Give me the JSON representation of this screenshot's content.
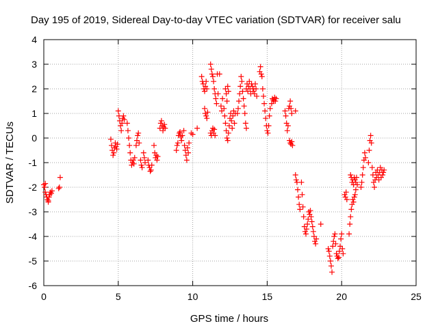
{
  "chart_data": {
    "type": "scatter",
    "title": "Day 195 of 2019, Sidereal Day-to-day VTEC variation (SDTVAR) for receiver salu",
    "xlabel": "GPS time / hours",
    "ylabel": "SDTVAR / TECUs",
    "xlim": [
      0,
      25
    ],
    "ylim": [
      -6,
      4
    ],
    "xticks": [
      0,
      5,
      10,
      15,
      20,
      25
    ],
    "yticks": [
      -6,
      -5,
      -4,
      -3,
      -2,
      -1,
      0,
      1,
      2,
      3,
      4
    ],
    "grid": true,
    "marker": "+",
    "color": "#ff0000",
    "series": [
      {
        "name": "SDTVAR",
        "points": [
          [
            0.05,
            -2.0
          ],
          [
            0.1,
            -2.2
          ],
          [
            0.15,
            -2.3
          ],
          [
            0.2,
            -2.4
          ],
          [
            0.25,
            -2.5
          ],
          [
            0.3,
            -2.55
          ],
          [
            0.35,
            -2.4
          ],
          [
            0.4,
            -2.3
          ],
          [
            0.45,
            -2.2
          ],
          [
            0.5,
            -2.25
          ],
          [
            0.55,
            -2.15
          ],
          [
            0.0,
            -1.9
          ],
          [
            0.1,
            -1.85
          ],
          [
            0.3,
            -2.6
          ],
          [
            1.0,
            -2.05
          ],
          [
            1.05,
            -2.0
          ],
          [
            1.1,
            -1.6
          ],
          [
            4.5,
            -0.05
          ],
          [
            4.55,
            -0.3
          ],
          [
            4.6,
            -0.5
          ],
          [
            4.65,
            -0.7
          ],
          [
            4.7,
            -0.6
          ],
          [
            4.75,
            -0.4
          ],
          [
            4.8,
            -0.2
          ],
          [
            4.85,
            -0.35
          ],
          [
            4.9,
            -0.45
          ],
          [
            4.95,
            -0.25
          ],
          [
            5.0,
            1.1
          ],
          [
            5.05,
            0.9
          ],
          [
            5.1,
            0.7
          ],
          [
            5.15,
            0.5
          ],
          [
            5.2,
            0.3
          ],
          [
            5.25,
            0.6
          ],
          [
            5.3,
            0.8
          ],
          [
            5.35,
            0.9
          ],
          [
            5.4,
            0.75
          ],
          [
            5.6,
            0.6
          ],
          [
            5.65,
            0.3
          ],
          [
            5.7,
            0.0
          ],
          [
            5.75,
            -0.3
          ],
          [
            5.8,
            -0.6
          ],
          [
            5.85,
            -0.9
          ],
          [
            5.9,
            -1.1
          ],
          [
            5.95,
            -1.0
          ],
          [
            6.0,
            -0.9
          ],
          [
            6.05,
            -1.05
          ],
          [
            6.1,
            -0.8
          ],
          [
            6.2,
            -0.3
          ],
          [
            6.25,
            -0.1
          ],
          [
            6.3,
            0.1
          ],
          [
            6.35,
            0.2
          ],
          [
            6.4,
            -0.2
          ],
          [
            6.5,
            -0.9
          ],
          [
            6.55,
            -1.1
          ],
          [
            6.6,
            -1.2
          ],
          [
            6.7,
            -0.6
          ],
          [
            6.75,
            -0.8
          ],
          [
            6.8,
            -1.0
          ],
          [
            7.0,
            -0.9
          ],
          [
            7.05,
            -1.1
          ],
          [
            7.1,
            -1.2
          ],
          [
            7.15,
            -1.35
          ],
          [
            7.2,
            -1.3
          ],
          [
            7.25,
            -1.1
          ],
          [
            7.4,
            -0.3
          ],
          [
            7.45,
            -0.6
          ],
          [
            7.5,
            -0.8
          ],
          [
            7.55,
            -0.7
          ],
          [
            7.6,
            -0.9
          ],
          [
            7.65,
            -0.75
          ],
          [
            7.8,
            0.4
          ],
          [
            7.85,
            0.6
          ],
          [
            7.9,
            0.7
          ],
          [
            7.95,
            0.5
          ],
          [
            8.0,
            0.3
          ],
          [
            8.05,
            0.45
          ],
          [
            8.1,
            0.55
          ],
          [
            8.15,
            0.4
          ],
          [
            8.9,
            -0.5
          ],
          [
            8.95,
            -0.3
          ],
          [
            9.0,
            -0.2
          ],
          [
            9.05,
            0.1
          ],
          [
            9.1,
            0.2
          ],
          [
            9.15,
            0.25
          ],
          [
            9.2,
            0.05
          ],
          [
            9.25,
            -0.1
          ],
          [
            9.3,
            0.1
          ],
          [
            9.4,
            0.3
          ],
          [
            9.45,
            -0.3
          ],
          [
            9.5,
            -0.5
          ],
          [
            9.55,
            -0.7
          ],
          [
            9.6,
            -0.9
          ],
          [
            9.65,
            -0.4
          ],
          [
            9.7,
            -0.6
          ],
          [
            9.75,
            -0.2
          ],
          [
            9.9,
            0.2
          ],
          [
            10.0,
            0.15
          ],
          [
            10.3,
            0.4
          ],
          [
            10.6,
            2.5
          ],
          [
            10.65,
            2.3
          ],
          [
            10.7,
            2.2
          ],
          [
            10.75,
            2.0
          ],
          [
            10.8,
            1.9
          ],
          [
            10.85,
            2.1
          ],
          [
            10.9,
            2.3
          ],
          [
            10.95,
            2.0
          ],
          [
            10.8,
            1.2
          ],
          [
            10.85,
            1.0
          ],
          [
            10.9,
            0.9
          ],
          [
            10.95,
            0.8
          ],
          [
            11.0,
            1.05
          ],
          [
            11.2,
            3.0
          ],
          [
            11.25,
            2.8
          ],
          [
            11.3,
            2.6
          ],
          [
            11.35,
            2.5
          ],
          [
            11.4,
            2.3
          ],
          [
            11.45,
            2.0
          ],
          [
            11.5,
            1.8
          ],
          [
            11.55,
            1.6
          ],
          [
            11.6,
            1.4
          ],
          [
            11.65,
            2.6
          ],
          [
            11.7,
            1.8
          ],
          [
            11.2,
            0.2
          ],
          [
            11.25,
            0.1
          ],
          [
            11.3,
            0.3
          ],
          [
            11.35,
            0.4
          ],
          [
            11.4,
            0.2
          ],
          [
            11.45,
            0.35
          ],
          [
            11.5,
            0.1
          ],
          [
            11.8,
            2.6
          ],
          [
            11.9,
            1.3
          ],
          [
            11.95,
            1.1
          ],
          [
            12.0,
            1.6
          ],
          [
            12.1,
            1.2
          ],
          [
            12.15,
            0.9
          ],
          [
            12.2,
            0.6
          ],
          [
            12.25,
            0.3
          ],
          [
            12.3,
            0.0
          ],
          [
            12.35,
            -0.1
          ],
          [
            12.4,
            0.2
          ],
          [
            12.45,
            0.5
          ],
          [
            12.5,
            0.8
          ],
          [
            12.55,
            1.0
          ],
          [
            12.6,
            0.7
          ],
          [
            12.65,
            0.4
          ],
          [
            12.7,
            0.9
          ],
          [
            12.75,
            1.1
          ],
          [
            12.8,
            0.6
          ],
          [
            12.85,
            1.0
          ],
          [
            12.2,
            2.0
          ],
          [
            12.25,
            1.8
          ],
          [
            12.3,
            1.5
          ],
          [
            12.35,
            2.1
          ],
          [
            12.4,
            1.9
          ],
          [
            13.0,
            1.0
          ],
          [
            13.05,
            1.2
          ],
          [
            13.1,
            1.5
          ],
          [
            13.15,
            1.8
          ],
          [
            13.2,
            2.1
          ],
          [
            13.25,
            2.5
          ],
          [
            13.3,
            2.3
          ],
          [
            13.35,
            1.9
          ],
          [
            13.4,
            1.6
          ],
          [
            13.45,
            1.3
          ],
          [
            13.5,
            1.0
          ],
          [
            13.55,
            0.6
          ],
          [
            13.6,
            0.4
          ],
          [
            13.6,
            2.0
          ],
          [
            13.65,
            2.2
          ],
          [
            13.7,
            1.9
          ],
          [
            13.75,
            2.1
          ],
          [
            13.8,
            2.3
          ],
          [
            13.85,
            2.0
          ],
          [
            13.9,
            1.8
          ],
          [
            13.95,
            2.2
          ],
          [
            14.0,
            2.1
          ],
          [
            14.05,
            1.9
          ],
          [
            14.1,
            2.0
          ],
          [
            14.15,
            1.8
          ],
          [
            14.2,
            2.2
          ],
          [
            14.25,
            2.0
          ],
          [
            14.3,
            1.7
          ],
          [
            14.5,
            2.7
          ],
          [
            14.55,
            2.9
          ],
          [
            14.6,
            2.6
          ],
          [
            14.65,
            2.5
          ],
          [
            14.7,
            2.0
          ],
          [
            14.75,
            1.7
          ],
          [
            14.8,
            1.4
          ],
          [
            14.85,
            1.1
          ],
          [
            14.9,
            0.8
          ],
          [
            14.95,
            0.5
          ],
          [
            15.0,
            0.3
          ],
          [
            15.05,
            0.2
          ],
          [
            15.1,
            0.5
          ],
          [
            15.15,
            0.9
          ],
          [
            15.2,
            1.2
          ],
          [
            15.3,
            1.4
          ],
          [
            15.35,
            1.6
          ],
          [
            15.4,
            1.55
          ],
          [
            15.45,
            1.5
          ],
          [
            15.5,
            1.65
          ],
          [
            15.55,
            1.5
          ],
          [
            15.6,
            1.6
          ],
          [
            16.2,
            1.1
          ],
          [
            16.25,
            0.9
          ],
          [
            16.3,
            0.6
          ],
          [
            16.35,
            0.3
          ],
          [
            16.4,
            0.5
          ],
          [
            16.45,
            1.2
          ],
          [
            16.5,
            1.3
          ],
          [
            16.55,
            1.5
          ],
          [
            16.6,
            1.2
          ],
          [
            16.65,
            1.0
          ],
          [
            16.5,
            -0.1
          ],
          [
            16.55,
            -0.2
          ],
          [
            16.6,
            -0.25
          ],
          [
            16.65,
            -0.15
          ],
          [
            16.7,
            -0.3
          ],
          [
            16.9,
            1.1
          ],
          [
            16.9,
            -1.5
          ],
          [
            16.95,
            -1.7
          ],
          [
            17.0,
            -1.8
          ],
          [
            17.05,
            -2.1
          ],
          [
            17.1,
            -2.4
          ],
          [
            17.15,
            -2.7
          ],
          [
            17.2,
            -2.9
          ],
          [
            17.3,
            -1.8
          ],
          [
            17.35,
            -2.3
          ],
          [
            17.4,
            -2.8
          ],
          [
            17.45,
            -3.2
          ],
          [
            17.5,
            -3.6
          ],
          [
            17.55,
            -3.8
          ],
          [
            17.6,
            -3.9
          ],
          [
            17.65,
            -3.7
          ],
          [
            17.7,
            -3.5
          ],
          [
            17.75,
            -3.3
          ],
          [
            17.8,
            -3.0
          ],
          [
            17.85,
            -3.1
          ],
          [
            17.9,
            -2.95
          ],
          [
            17.95,
            -3.2
          ],
          [
            18.0,
            -3.4
          ],
          [
            18.05,
            -3.6
          ],
          [
            18.1,
            -3.8
          ],
          [
            18.15,
            -4.0
          ],
          [
            18.2,
            -4.2
          ],
          [
            18.25,
            -4.3
          ],
          [
            18.3,
            -4.1
          ],
          [
            18.6,
            -3.5
          ],
          [
            19.1,
            -4.5
          ],
          [
            19.15,
            -4.6
          ],
          [
            19.2,
            -4.8
          ],
          [
            19.25,
            -5.0
          ],
          [
            19.3,
            -5.2
          ],
          [
            19.35,
            -5.45
          ],
          [
            19.4,
            -4.4
          ],
          [
            19.45,
            -4.2
          ],
          [
            19.5,
            -4.0
          ],
          [
            19.55,
            -3.9
          ],
          [
            19.6,
            -4.3
          ],
          [
            19.65,
            -4.7
          ],
          [
            19.7,
            -4.8
          ],
          [
            19.75,
            -4.9
          ],
          [
            19.8,
            -4.85
          ],
          [
            19.85,
            -4.6
          ],
          [
            19.9,
            -4.4
          ],
          [
            19.95,
            -4.1
          ],
          [
            20.0,
            -3.9
          ],
          [
            20.05,
            -4.5
          ],
          [
            20.1,
            -4.7
          ],
          [
            20.2,
            -2.3
          ],
          [
            20.25,
            -2.4
          ],
          [
            20.3,
            -2.2
          ],
          [
            20.35,
            -2.5
          ],
          [
            20.5,
            -3.9
          ],
          [
            20.55,
            -3.5
          ],
          [
            20.6,
            -3.2
          ],
          [
            20.65,
            -2.9
          ],
          [
            20.7,
            -2.7
          ],
          [
            20.75,
            -2.5
          ],
          [
            20.8,
            -2.6
          ],
          [
            20.85,
            -2.4
          ],
          [
            20.9,
            -2.3
          ],
          [
            20.95,
            -2.1
          ],
          [
            20.6,
            -1.5
          ],
          [
            20.65,
            -1.6
          ],
          [
            20.7,
            -1.8
          ],
          [
            20.75,
            -1.7
          ],
          [
            20.8,
            -1.9
          ],
          [
            20.85,
            -1.6
          ],
          [
            20.9,
            -1.7
          ],
          [
            20.95,
            -1.8
          ],
          [
            21.0,
            -1.6
          ],
          [
            21.05,
            -1.9
          ],
          [
            21.3,
            -2.0
          ],
          [
            21.35,
            -1.8
          ],
          [
            21.4,
            -1.5
          ],
          [
            21.45,
            -1.2
          ],
          [
            21.5,
            -0.9
          ],
          [
            21.55,
            -0.6
          ],
          [
            21.6,
            -0.8
          ],
          [
            21.8,
            -1.0
          ],
          [
            21.85,
            -0.5
          ],
          [
            21.9,
            -0.1
          ],
          [
            21.95,
            0.1
          ],
          [
            22.0,
            -0.2
          ],
          [
            22.05,
            -1.2
          ],
          [
            22.1,
            -1.5
          ],
          [
            22.15,
            -1.8
          ],
          [
            22.2,
            -2.0
          ],
          [
            22.25,
            -1.7
          ],
          [
            22.3,
            -1.4
          ],
          [
            22.35,
            -1.6
          ],
          [
            22.4,
            -1.3
          ],
          [
            22.45,
            -1.5
          ],
          [
            22.5,
            -1.7
          ],
          [
            22.55,
            -1.4
          ],
          [
            22.6,
            -1.2
          ],
          [
            22.65,
            -1.6
          ],
          [
            22.7,
            -1.3
          ],
          [
            22.75,
            -1.5
          ],
          [
            22.8,
            -1.4
          ],
          [
            22.85,
            -1.3
          ]
        ]
      }
    ]
  }
}
